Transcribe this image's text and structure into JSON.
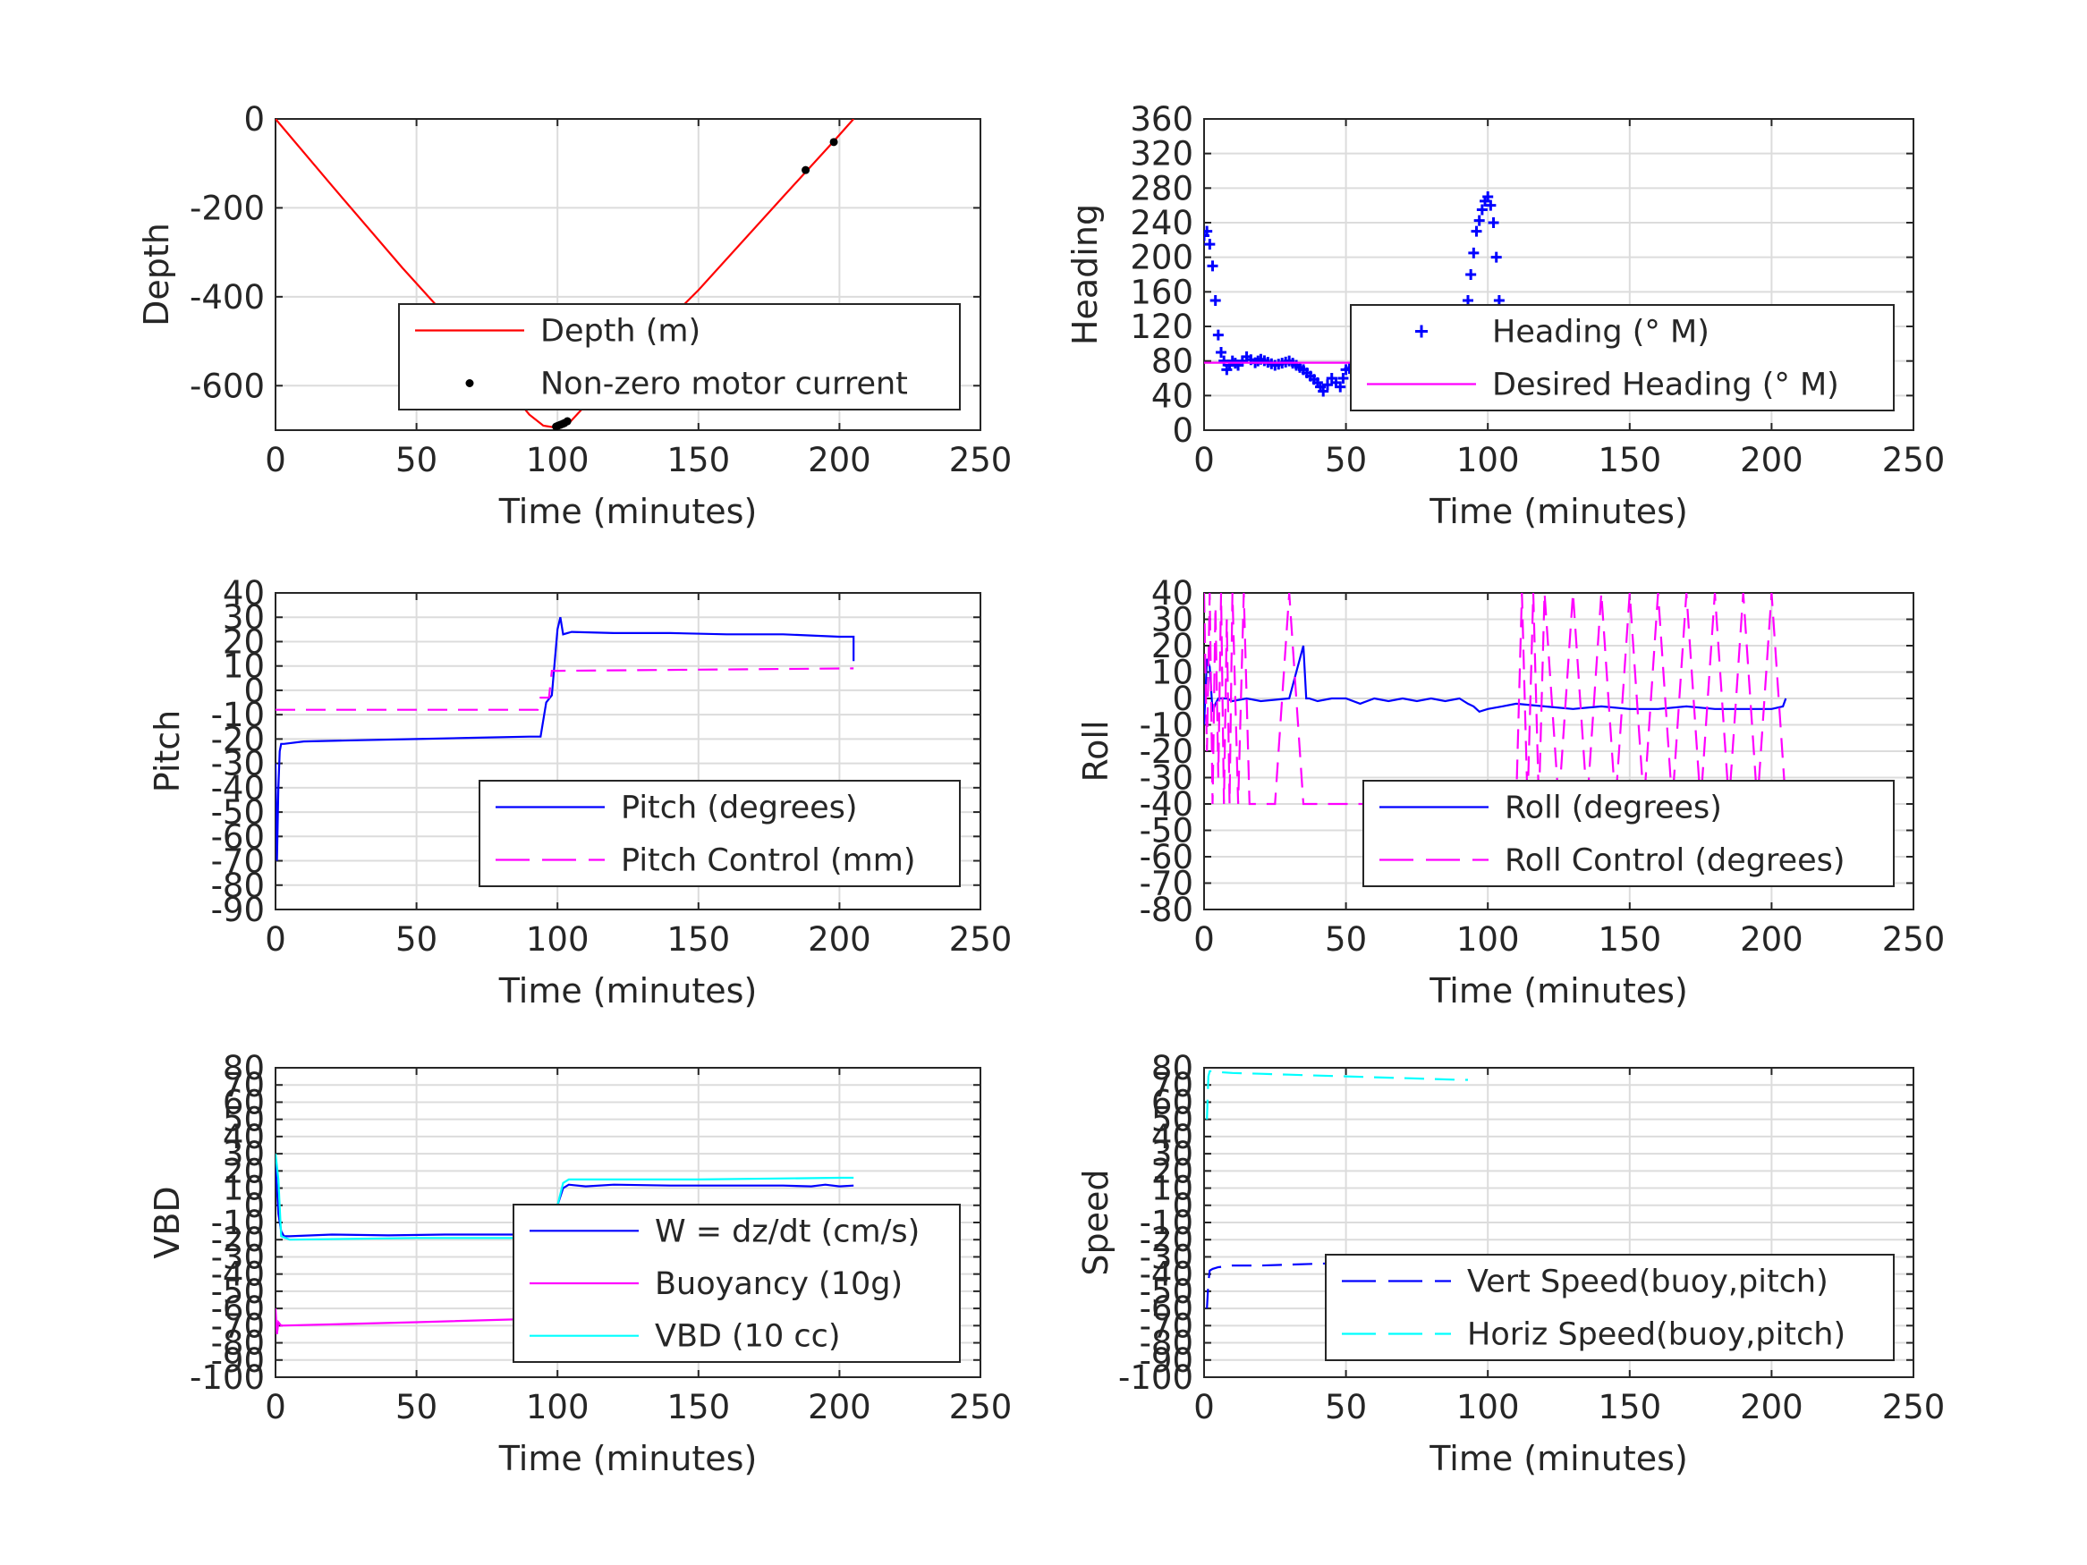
{
  "figure": {
    "colors": {
      "red": "#ff0000",
      "blue": "#0000ff",
      "magenta": "#ff00ff",
      "cyan": "#00ffff",
      "black": "#000000",
      "grid": "#dcdcdc",
      "axis": "#262626"
    }
  },
  "chart_data": [
    {
      "id": "depth",
      "type": "line",
      "xlabel": "Time (minutes)",
      "ylabel": "Depth",
      "xlim": [
        0,
        250
      ],
      "ylim": [
        -700,
        0
      ],
      "xticks": [
        0,
        50,
        100,
        150,
        200,
        250
      ],
      "yticks": [
        0,
        -200,
        -400,
        -600
      ],
      "grid": true,
      "legend_position": "lower-right",
      "series": [
        {
          "name": "Depth (m)",
          "style": "line",
          "color": "#ff0000",
          "x": [
            0,
            20,
            45,
            70,
            90,
            95,
            100,
            104,
            120,
            150,
            180,
            198,
            205
          ],
          "y": [
            0,
            -150,
            -335,
            -510,
            -665,
            -690,
            -695,
            -685,
            -575,
            -385,
            -175,
            -50,
            0
          ]
        },
        {
          "name": "Non-zero motor current",
          "style": "dot",
          "color": "#000000",
          "x": [
            99.5,
            100.2,
            101,
            101.8,
            102.5,
            103.5,
            188,
            198
          ],
          "y": [
            -692,
            -690,
            -688,
            -686,
            -684,
            -680,
            -115,
            -52
          ]
        }
      ]
    },
    {
      "id": "heading",
      "type": "scatter",
      "xlabel": "Time (minutes)",
      "ylabel": "Heading",
      "xlim": [
        0,
        250
      ],
      "ylim": [
        0,
        360
      ],
      "xticks": [
        0,
        50,
        100,
        150,
        200,
        250
      ],
      "yticks": [
        0,
        40,
        80,
        120,
        160,
        200,
        240,
        280,
        320,
        360
      ],
      "grid": true,
      "legend_position": "middle-right",
      "series": [
        {
          "name": "Heading (° M)",
          "style": "plus",
          "color": "#0000ff",
          "x": [
            0,
            1,
            2,
            3,
            4,
            5,
            6,
            8,
            10,
            12,
            15,
            18,
            20,
            25,
            30,
            35,
            40,
            42,
            45,
            48,
            50,
            55,
            60,
            65,
            70,
            75,
            80,
            85,
            90,
            92,
            94,
            96,
            98,
            99,
            100,
            101,
            102,
            103,
            104,
            105,
            106,
            108,
            110,
            115,
            120,
            125,
            130,
            135,
            140,
            145,
            150,
            155,
            160,
            165,
            170,
            175,
            180,
            185,
            190,
            195,
            200,
            205
          ],
          "y": [
            225,
            230,
            215,
            190,
            150,
            110,
            90,
            70,
            80,
            75,
            85,
            78,
            82,
            75,
            80,
            70,
            55,
            45,
            60,
            50,
            70,
            75,
            80,
            70,
            85,
            78,
            80,
            75,
            80,
            120,
            180,
            230,
            255,
            265,
            270,
            260,
            240,
            200,
            150,
            100,
            80,
            75,
            70,
            80,
            65,
            80,
            75,
            72,
            85,
            60,
            80,
            90,
            75,
            70,
            95,
            85,
            70,
            80,
            85,
            78,
            75,
            70
          ]
        },
        {
          "name": "Desired Heading (° M)",
          "style": "line",
          "color": "#ff00ff",
          "x": [
            0,
            205
          ],
          "y": [
            78,
            78
          ]
        }
      ]
    },
    {
      "id": "pitch",
      "type": "line",
      "xlabel": "Time (minutes)",
      "ylabel": "Pitch",
      "xlim": [
        0,
        250
      ],
      "ylim": [
        -90,
        40
      ],
      "xticks": [
        0,
        50,
        100,
        150,
        200,
        250
      ],
      "yticks": [
        40,
        30,
        20,
        10,
        0,
        -10,
        -20,
        -30,
        -40,
        -50,
        -60,
        -70,
        -80,
        -90
      ],
      "grid": true,
      "legend_position": "lower-right",
      "series": [
        {
          "name": "Pitch (degrees)",
          "style": "line",
          "color": "#0000ff",
          "x": [
            0,
            0.5,
            1,
            1.5,
            2,
            3,
            10,
            30,
            50,
            70,
            90,
            94,
            96,
            98,
            100,
            101,
            102,
            105,
            120,
            140,
            160,
            180,
            200,
            205,
            205
          ],
          "y": [
            -30,
            -70,
            -40,
            -25,
            -22,
            -22,
            -21,
            -20.5,
            -20,
            -19.5,
            -19,
            -19,
            -5,
            -2,
            25,
            30,
            23,
            24,
            23.5,
            23.5,
            23,
            23,
            22,
            22,
            12
          ]
        },
        {
          "name": "Pitch Control (mm)",
          "style": "dashed",
          "color": "#ff00ff",
          "x": [
            0,
            93,
            94,
            97,
            98,
            100,
            205
          ],
          "y": [
            -8,
            -8,
            -3,
            -3,
            8,
            8,
            9
          ]
        }
      ]
    },
    {
      "id": "roll",
      "type": "line",
      "xlabel": "Time (minutes)",
      "ylabel": "Roll",
      "xlim": [
        0,
        250
      ],
      "ylim": [
        -80,
        40
      ],
      "xticks": [
        0,
        50,
        100,
        150,
        200,
        250
      ],
      "yticks": [
        40,
        30,
        20,
        10,
        0,
        -10,
        -20,
        -30,
        -40,
        -50,
        -60,
        -70,
        -80
      ],
      "grid": true,
      "legend_position": "lower-right",
      "series": [
        {
          "name": "Roll (degrees)",
          "style": "line",
          "color": "#0000ff",
          "x": [
            0,
            1,
            2,
            3,
            4,
            5,
            6,
            8,
            10,
            15,
            20,
            30,
            35,
            36,
            37,
            40,
            45,
            50,
            55,
            60,
            65,
            70,
            75,
            80,
            85,
            90,
            93,
            95,
            97,
            100,
            105,
            110,
            120,
            130,
            140,
            150,
            160,
            170,
            180,
            190,
            200,
            204,
            205
          ],
          "y": [
            -10,
            15,
            12,
            -5,
            -2,
            0,
            0,
            0,
            -1,
            0,
            -1,
            0,
            20,
            0,
            0,
            -1,
            0,
            0,
            -2,
            0,
            -1,
            0,
            -1,
            0,
            -1,
            0,
            -2,
            -3,
            -5,
            -4,
            -3,
            -2,
            -3,
            -4,
            -3,
            -4,
            -4,
            -3,
            -4,
            -4,
            -4,
            -3,
            0
          ]
        },
        {
          "name": "Roll Control (degrees)",
          "style": "dashed",
          "color": "#ff00ff",
          "x": [
            0,
            1,
            2,
            3,
            4,
            5,
            6,
            7,
            8,
            9,
            10,
            12,
            14,
            16,
            20,
            25,
            30,
            35,
            40,
            45,
            50,
            55,
            60,
            65,
            70,
            75,
            80,
            85,
            90,
            95,
            100,
            105,
            110,
            112,
            114,
            116,
            118,
            120,
            125,
            130,
            135,
            140,
            145,
            150,
            155,
            160,
            165,
            170,
            175,
            180,
            185,
            190,
            195,
            200,
            205
          ],
          "y": [
            40,
            -20,
            40,
            -40,
            35,
            -30,
            40,
            -40,
            30,
            -40,
            40,
            -40,
            40,
            -40,
            -40,
            -40,
            40,
            -40,
            -40,
            -40,
            -40,
            -40,
            -40,
            -40,
            -40,
            -40,
            -40,
            -40,
            -40,
            -40,
            -40,
            -40,
            -40,
            40,
            -40,
            40,
            -40,
            40,
            -40,
            40,
            -40,
            40,
            -40,
            40,
            -40,
            40,
            -40,
            40,
            -40,
            40,
            -40,
            40,
            -40,
            40,
            -40
          ]
        }
      ]
    },
    {
      "id": "vbd",
      "type": "line",
      "xlabel": "Time (minutes)",
      "ylabel": "VBD",
      "xlim": [
        0,
        250
      ],
      "ylim": [
        -100,
        80
      ],
      "xticks": [
        0,
        50,
        100,
        150,
        200,
        250
      ],
      "yticks": [
        80,
        70,
        60,
        50,
        40,
        30,
        20,
        10,
        0,
        -10,
        -20,
        -30,
        -40,
        -50,
        -60,
        -70,
        -80,
        -90,
        -100
      ],
      "grid": true,
      "legend_position": "lower-right",
      "series": [
        {
          "name": "W = dz/dt (cm/s)",
          "style": "line",
          "color": "#0000ff",
          "x": [
            0,
            1,
            2,
            3,
            5,
            20,
            40,
            60,
            80,
            90,
            94,
            96,
            98,
            100,
            102,
            104,
            110,
            120,
            140,
            160,
            180,
            190,
            195,
            200,
            205
          ],
          "y": [
            25,
            -5,
            -15,
            -18,
            -18,
            -17,
            -17.5,
            -17,
            -17,
            -17,
            -18,
            -10,
            -5,
            0,
            10,
            12,
            11,
            12,
            11.5,
            11.5,
            11.5,
            11,
            12,
            11,
            11.5
          ]
        },
        {
          "name": "Buoyancy (10g)",
          "style": "line",
          "color": "#ff00ff",
          "x": [
            0,
            0.5,
            1,
            2,
            50,
            93
          ],
          "y": [
            -60,
            -75,
            -68,
            -70,
            -68,
            -66
          ]
        },
        {
          "name": "VBD (10 cc)",
          "style": "line",
          "color": "#00ffff",
          "x": [
            0,
            1,
            2,
            5,
            50,
            90,
            93,
            95,
            100,
            102,
            104,
            150,
            200,
            205
          ],
          "y": [
            30,
            15,
            -18,
            -20,
            -19,
            -19,
            -18,
            -16,
            0,
            13,
            15,
            15,
            16,
            16
          ]
        }
      ]
    },
    {
      "id": "speed",
      "type": "line",
      "xlabel": "Time (minutes)",
      "ylabel": "Speed",
      "xlim": [
        0,
        250
      ],
      "ylim": [
        -100,
        80
      ],
      "xticks": [
        0,
        50,
        100,
        150,
        200,
        250
      ],
      "yticks": [
        80,
        70,
        60,
        50,
        40,
        30,
        20,
        10,
        0,
        -10,
        -20,
        -30,
        -40,
        -50,
        -60,
        -70,
        -80,
        -90,
        -100
      ],
      "grid": true,
      "legend_position": "lower-right",
      "series": [
        {
          "name": "Vert Speed(buoy,pitch)",
          "style": "dashed",
          "color": "#0000ff",
          "x": [
            1,
            1.5,
            2,
            3,
            5,
            10,
            20,
            30,
            40,
            50,
            60,
            70,
            80,
            90,
            93
          ],
          "y": [
            -60,
            -45,
            -38,
            -37,
            -36,
            -35,
            -35,
            -34.5,
            -34,
            -33.5,
            -33,
            -33,
            -32.5,
            -32,
            -32
          ]
        },
        {
          "name": "Horiz Speed(buoy,pitch)",
          "style": "dashed",
          "color": "#00ffff",
          "x": [
            1,
            1.5,
            2,
            3,
            5,
            10,
            20,
            30,
            40,
            50,
            60,
            70,
            80,
            90,
            93
          ],
          "y": [
            50,
            75,
            78,
            78,
            77.5,
            77,
            76.5,
            76,
            75.5,
            75,
            74.5,
            74,
            73.5,
            73,
            73
          ]
        }
      ]
    }
  ]
}
